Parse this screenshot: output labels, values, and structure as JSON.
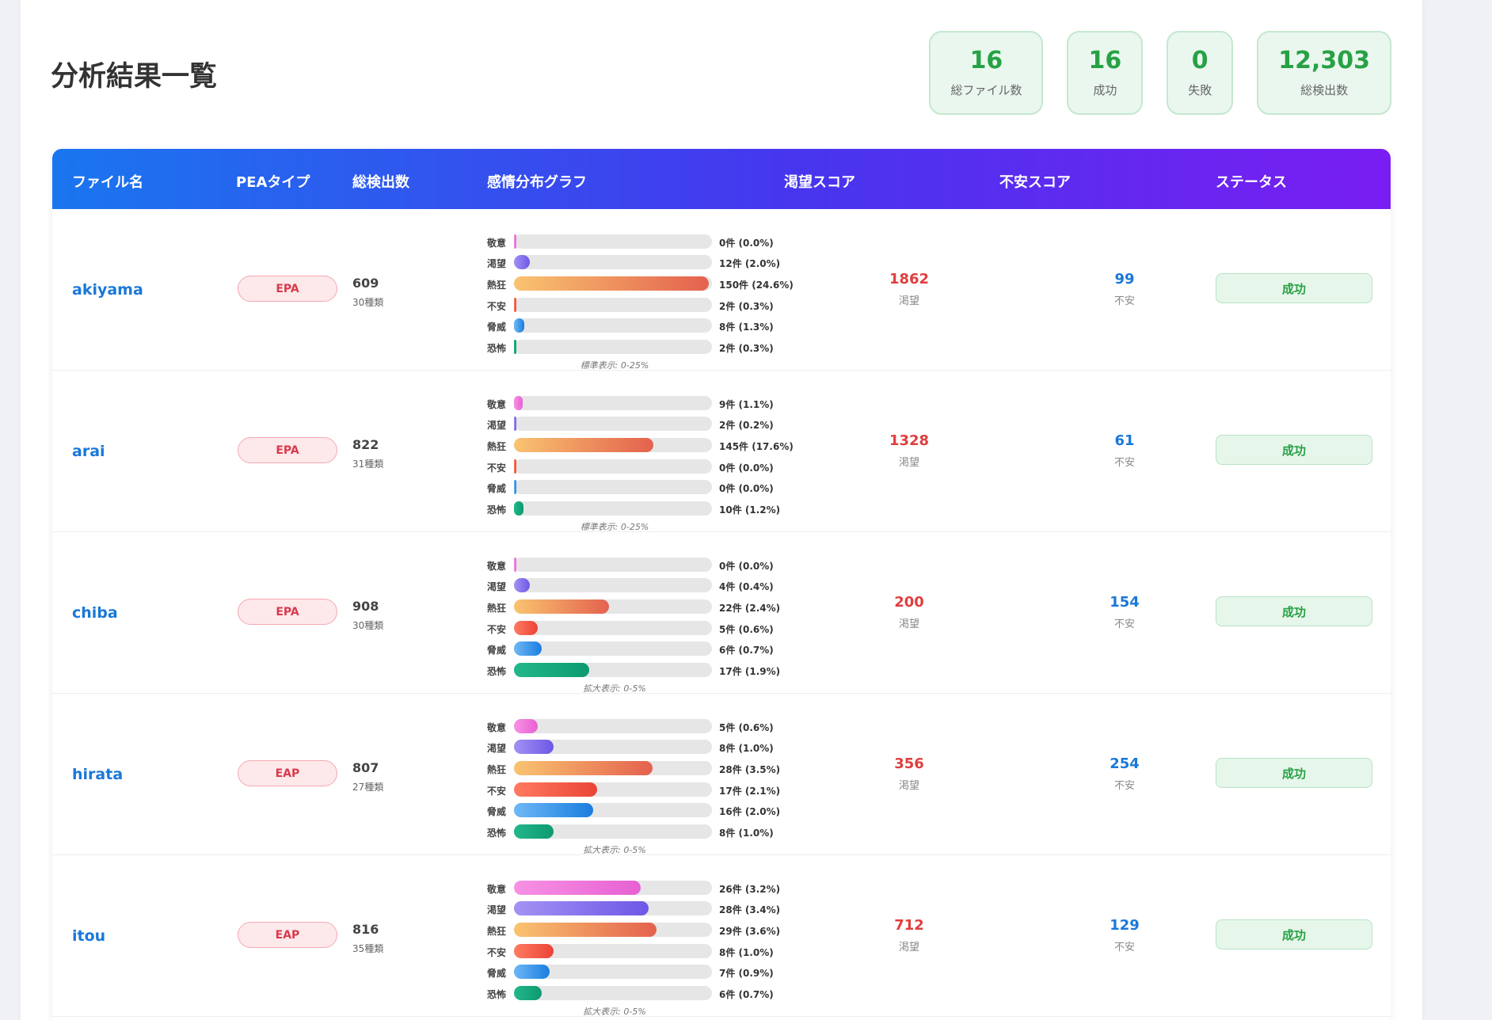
{
  "page_title": "分析結果一覧",
  "stats": [
    {
      "value": "16",
      "label": "総ファイル数"
    },
    {
      "value": "16",
      "label": "成功"
    },
    {
      "value": "0",
      "label": "失敗"
    },
    {
      "value": "12,303",
      "label": "総検出数"
    }
  ],
  "headers": {
    "file": "ファイル名",
    "pea": "PEAタイプ",
    "total": "総検出数",
    "graph": "感情分布グラフ",
    "desire_score": "渇望スコア",
    "anxiety_score": "不安スコア",
    "status": "ステータス"
  },
  "emotion_labels": [
    "敬意",
    "渇望",
    "熱狂",
    "不安",
    "脅威",
    "恐怖"
  ],
  "colors": {
    "header_gradient": [
      "#1a76ef",
      "#4636ee",
      "#7a1df2"
    ],
    "success_green": "#27a145",
    "desire_red": "#e03e3e",
    "anxiety_blue": "#1a78d8"
  },
  "rows": [
    {
      "file": "akiyama",
      "pea": "EPA",
      "total": "609",
      "kinds": "30種類",
      "emotions": [
        {
          "text": "0件 (0.0%)",
          "pct": 0.0
        },
        {
          "text": "12件 (2.0%)",
          "pct": 2.0
        },
        {
          "text": "150件 (24.6%)",
          "pct": 24.6
        },
        {
          "text": "2件 (0.3%)",
          "pct": 0.3
        },
        {
          "text": "8件 (1.3%)",
          "pct": 1.3
        },
        {
          "text": "2件 (0.3%)",
          "pct": 0.3
        }
      ],
      "scale_max": 25,
      "scale_label": "標準表示: 0-25%",
      "desire": "1862",
      "desire_unit": "渇望",
      "anxiety": "99",
      "anxiety_unit": "不安",
      "status": "成功"
    },
    {
      "file": "arai",
      "pea": "EPA",
      "total": "822",
      "kinds": "31種類",
      "emotions": [
        {
          "text": "9件 (1.1%)",
          "pct": 1.1
        },
        {
          "text": "2件 (0.2%)",
          "pct": 0.2
        },
        {
          "text": "145件 (17.6%)",
          "pct": 17.6
        },
        {
          "text": "0件 (0.0%)",
          "pct": 0.0
        },
        {
          "text": "0件 (0.0%)",
          "pct": 0.0
        },
        {
          "text": "10件 (1.2%)",
          "pct": 1.2
        }
      ],
      "scale_max": 25,
      "scale_label": "標準表示: 0-25%",
      "desire": "1328",
      "desire_unit": "渇望",
      "anxiety": "61",
      "anxiety_unit": "不安",
      "status": "成功"
    },
    {
      "file": "chiba",
      "pea": "EPA",
      "total": "908",
      "kinds": "30種類",
      "emotions": [
        {
          "text": "0件 (0.0%)",
          "pct": 0.0
        },
        {
          "text": "4件 (0.4%)",
          "pct": 0.4
        },
        {
          "text": "22件 (2.4%)",
          "pct": 2.4
        },
        {
          "text": "5件 (0.6%)",
          "pct": 0.6
        },
        {
          "text": "6件 (0.7%)",
          "pct": 0.7
        },
        {
          "text": "17件 (1.9%)",
          "pct": 1.9
        }
      ],
      "scale_max": 5,
      "scale_label": "拡大表示: 0-5%",
      "desire": "200",
      "desire_unit": "渇望",
      "anxiety": "154",
      "anxiety_unit": "不安",
      "status": "成功"
    },
    {
      "file": "hirata",
      "pea": "EAP",
      "total": "807",
      "kinds": "27種類",
      "emotions": [
        {
          "text": "5件 (0.6%)",
          "pct": 0.6
        },
        {
          "text": "8件 (1.0%)",
          "pct": 1.0
        },
        {
          "text": "28件 (3.5%)",
          "pct": 3.5
        },
        {
          "text": "17件 (2.1%)",
          "pct": 2.1
        },
        {
          "text": "16件 (2.0%)",
          "pct": 2.0
        },
        {
          "text": "8件 (1.0%)",
          "pct": 1.0
        }
      ],
      "scale_max": 5,
      "scale_label": "拡大表示: 0-5%",
      "desire": "356",
      "desire_unit": "渇望",
      "anxiety": "254",
      "anxiety_unit": "不安",
      "status": "成功"
    },
    {
      "file": "itou",
      "pea": "EAP",
      "total": "816",
      "kinds": "35種類",
      "emotions": [
        {
          "text": "26件 (3.2%)",
          "pct": 3.2
        },
        {
          "text": "28件 (3.4%)",
          "pct": 3.4
        },
        {
          "text": "29件 (3.6%)",
          "pct": 3.6
        },
        {
          "text": "8件 (1.0%)",
          "pct": 1.0
        },
        {
          "text": "7件 (0.9%)",
          "pct": 0.9
        },
        {
          "text": "6件 (0.7%)",
          "pct": 0.7
        }
      ],
      "scale_max": 5,
      "scale_label": "拡大表示: 0-5%",
      "desire": "712",
      "desire_unit": "渇望",
      "anxiety": "129",
      "anxiety_unit": "不安",
      "status": "成功"
    }
  ]
}
